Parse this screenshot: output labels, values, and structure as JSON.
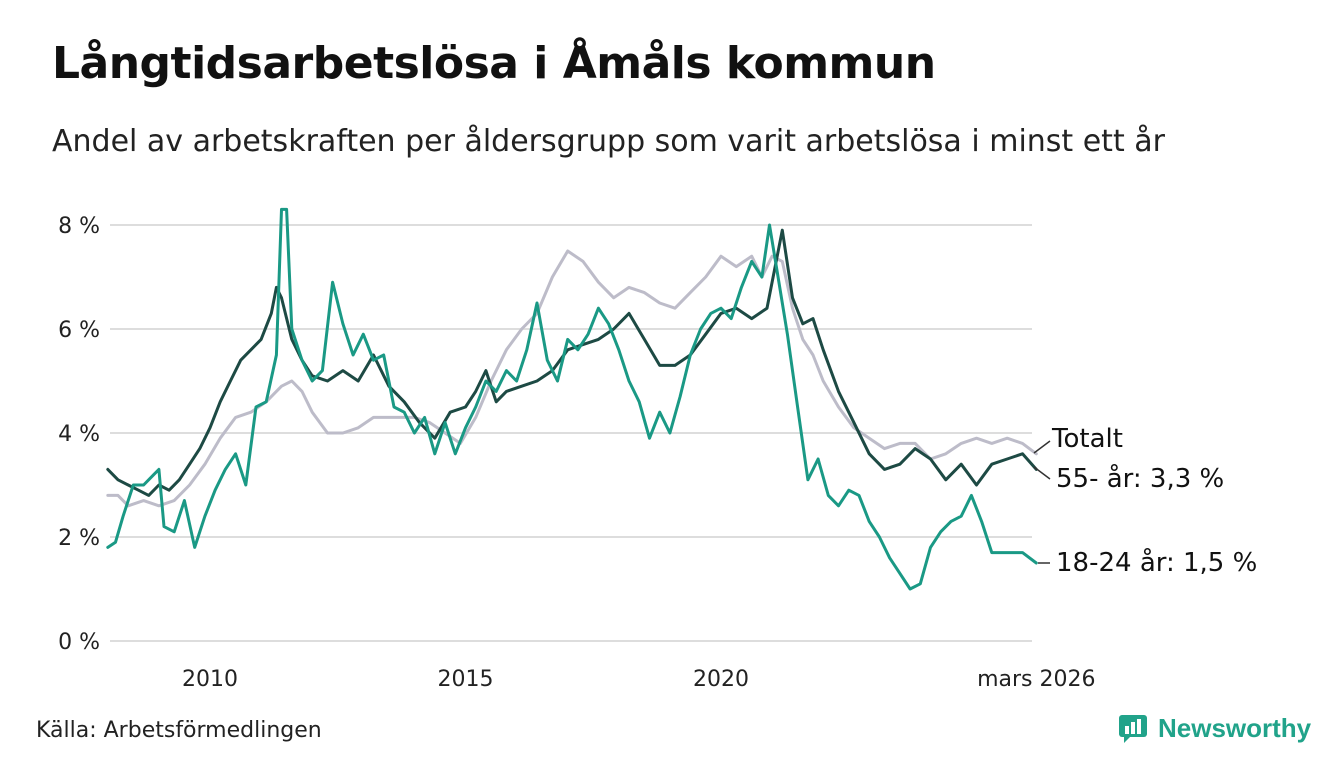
{
  "title": "Långtidsarbetslösa i Åmåls kommun",
  "subtitle": "Andel av arbetskraften per åldersgrupp som varit arbetslösa i minst ett år",
  "source": "Källa: Arbetsförmedlingen",
  "brand": {
    "name": "Newsworthy",
    "icon": "newsworthy-logo-icon"
  },
  "colors": {
    "total": "#bdbcc9",
    "age55": "#1d4a44",
    "age18_24": "#1a9985",
    "grid": "#dddddd",
    "brand": "#21a38a"
  },
  "chart_data": {
    "type": "line",
    "title": "Långtidsarbetslösa i Åmåls kommun",
    "xlabel": "",
    "ylabel": "",
    "ylim": [
      0,
      8.5
    ],
    "xlim": [
      2008.0,
      2026.2
    ],
    "yticks": [
      {
        "value": 0,
        "label": "0 %"
      },
      {
        "value": 2,
        "label": "2 %"
      },
      {
        "value": 4,
        "label": "4 %"
      },
      {
        "value": 6,
        "label": "6 %"
      },
      {
        "value": 8,
        "label": "8 %"
      }
    ],
    "xticks": [
      {
        "value": 2010,
        "label": "2010"
      },
      {
        "value": 2015,
        "label": "2015"
      },
      {
        "value": 2020,
        "label": "2020"
      },
      {
        "value": 2026.17,
        "label": "mars 2026"
      }
    ],
    "series": [
      {
        "key": "total",
        "name": "Totalt",
        "label": "Totalt",
        "points": [
          [
            2008.0,
            2.8
          ],
          [
            2008.2,
            2.8
          ],
          [
            2008.4,
            2.6
          ],
          [
            2008.7,
            2.7
          ],
          [
            2009.0,
            2.6
          ],
          [
            2009.3,
            2.7
          ],
          [
            2009.6,
            3.0
          ],
          [
            2009.9,
            3.4
          ],
          [
            2010.2,
            3.9
          ],
          [
            2010.5,
            4.3
          ],
          [
            2010.8,
            4.4
          ],
          [
            2011.1,
            4.6
          ],
          [
            2011.4,
            4.9
          ],
          [
            2011.6,
            5.0
          ],
          [
            2011.8,
            4.8
          ],
          [
            2012.0,
            4.4
          ],
          [
            2012.3,
            4.0
          ],
          [
            2012.6,
            4.0
          ],
          [
            2012.9,
            4.1
          ],
          [
            2013.2,
            4.3
          ],
          [
            2013.6,
            4.3
          ],
          [
            2014.0,
            4.3
          ],
          [
            2014.3,
            4.2
          ],
          [
            2014.6,
            4.0
          ],
          [
            2014.9,
            3.8
          ],
          [
            2015.2,
            4.3
          ],
          [
            2015.5,
            5.0
          ],
          [
            2015.8,
            5.6
          ],
          [
            2016.1,
            6.0
          ],
          [
            2016.4,
            6.3
          ],
          [
            2016.7,
            7.0
          ],
          [
            2017.0,
            7.5
          ],
          [
            2017.3,
            7.3
          ],
          [
            2017.6,
            6.9
          ],
          [
            2017.9,
            6.6
          ],
          [
            2018.2,
            6.8
          ],
          [
            2018.5,
            6.7
          ],
          [
            2018.8,
            6.5
          ],
          [
            2019.1,
            6.4
          ],
          [
            2019.4,
            6.7
          ],
          [
            2019.7,
            7.0
          ],
          [
            2020.0,
            7.4
          ],
          [
            2020.3,
            7.2
          ],
          [
            2020.6,
            7.4
          ],
          [
            2020.8,
            7.0
          ],
          [
            2021.0,
            7.4
          ],
          [
            2021.2,
            7.3
          ],
          [
            2021.4,
            6.4
          ],
          [
            2021.6,
            5.8
          ],
          [
            2021.8,
            5.5
          ],
          [
            2022.0,
            5.0
          ],
          [
            2022.3,
            4.5
          ],
          [
            2022.6,
            4.1
          ],
          [
            2022.9,
            3.9
          ],
          [
            2023.2,
            3.7
          ],
          [
            2023.5,
            3.8
          ],
          [
            2023.8,
            3.8
          ],
          [
            2024.1,
            3.5
          ],
          [
            2024.4,
            3.6
          ],
          [
            2024.7,
            3.8
          ],
          [
            2025.0,
            3.9
          ],
          [
            2025.3,
            3.8
          ],
          [
            2025.6,
            3.9
          ],
          [
            2025.9,
            3.8
          ],
          [
            2026.17,
            3.6
          ]
        ]
      },
      {
        "key": "age55",
        "name": "55- år",
        "label": "55- år: 3,3 %",
        "points": [
          [
            2008.0,
            3.3
          ],
          [
            2008.2,
            3.1
          ],
          [
            2008.4,
            3.0
          ],
          [
            2008.6,
            2.9
          ],
          [
            2008.8,
            2.8
          ],
          [
            2009.0,
            3.0
          ],
          [
            2009.2,
            2.9
          ],
          [
            2009.4,
            3.1
          ],
          [
            2009.6,
            3.4
          ],
          [
            2009.8,
            3.7
          ],
          [
            2010.0,
            4.1
          ],
          [
            2010.2,
            4.6
          ],
          [
            2010.4,
            5.0
          ],
          [
            2010.6,
            5.4
          ],
          [
            2010.8,
            5.6
          ],
          [
            2011.0,
            5.8
          ],
          [
            2011.2,
            6.3
          ],
          [
            2011.3,
            6.8
          ],
          [
            2011.4,
            6.6
          ],
          [
            2011.6,
            5.8
          ],
          [
            2011.8,
            5.4
          ],
          [
            2012.0,
            5.1
          ],
          [
            2012.3,
            5.0
          ],
          [
            2012.6,
            5.2
          ],
          [
            2012.9,
            5.0
          ],
          [
            2013.2,
            5.5
          ],
          [
            2013.5,
            4.9
          ],
          [
            2013.8,
            4.6
          ],
          [
            2014.1,
            4.2
          ],
          [
            2014.4,
            3.9
          ],
          [
            2014.7,
            4.4
          ],
          [
            2015.0,
            4.5
          ],
          [
            2015.2,
            4.8
          ],
          [
            2015.4,
            5.2
          ],
          [
            2015.6,
            4.6
          ],
          [
            2015.8,
            4.8
          ],
          [
            2016.1,
            4.9
          ],
          [
            2016.4,
            5.0
          ],
          [
            2016.7,
            5.2
          ],
          [
            2017.0,
            5.6
          ],
          [
            2017.3,
            5.7
          ],
          [
            2017.6,
            5.8
          ],
          [
            2017.9,
            6.0
          ],
          [
            2018.2,
            6.3
          ],
          [
            2018.5,
            5.8
          ],
          [
            2018.8,
            5.3
          ],
          [
            2019.1,
            5.3
          ],
          [
            2019.4,
            5.5
          ],
          [
            2019.7,
            5.9
          ],
          [
            2020.0,
            6.3
          ],
          [
            2020.3,
            6.4
          ],
          [
            2020.6,
            6.2
          ],
          [
            2020.9,
            6.4
          ],
          [
            2021.1,
            7.4
          ],
          [
            2021.2,
            7.9
          ],
          [
            2021.4,
            6.6
          ],
          [
            2021.6,
            6.1
          ],
          [
            2021.8,
            6.2
          ],
          [
            2022.0,
            5.6
          ],
          [
            2022.3,
            4.8
          ],
          [
            2022.6,
            4.2
          ],
          [
            2022.9,
            3.6
          ],
          [
            2023.2,
            3.3
          ],
          [
            2023.5,
            3.4
          ],
          [
            2023.8,
            3.7
          ],
          [
            2024.1,
            3.5
          ],
          [
            2024.4,
            3.1
          ],
          [
            2024.7,
            3.4
          ],
          [
            2025.0,
            3.0
          ],
          [
            2025.3,
            3.4
          ],
          [
            2025.6,
            3.5
          ],
          [
            2025.9,
            3.6
          ],
          [
            2026.17,
            3.3
          ]
        ]
      },
      {
        "key": "age18_24",
        "name": "18-24 år",
        "label": "18-24 år: 1,5 %",
        "points": [
          [
            2008.0,
            1.8
          ],
          [
            2008.15,
            1.9
          ],
          [
            2008.3,
            2.4
          ],
          [
            2008.5,
            3.0
          ],
          [
            2008.7,
            3.0
          ],
          [
            2008.9,
            3.2
          ],
          [
            2009.0,
            3.3
          ],
          [
            2009.1,
            2.2
          ],
          [
            2009.3,
            2.1
          ],
          [
            2009.5,
            2.7
          ],
          [
            2009.7,
            1.8
          ],
          [
            2009.9,
            2.4
          ],
          [
            2010.1,
            2.9
          ],
          [
            2010.3,
            3.3
          ],
          [
            2010.5,
            3.6
          ],
          [
            2010.7,
            3.0
          ],
          [
            2010.9,
            4.5
          ],
          [
            2011.1,
            4.6
          ],
          [
            2011.3,
            5.5
          ],
          [
            2011.4,
            8.3
          ],
          [
            2011.5,
            8.3
          ],
          [
            2011.6,
            6.0
          ],
          [
            2011.8,
            5.4
          ],
          [
            2012.0,
            5.0
          ],
          [
            2012.2,
            5.2
          ],
          [
            2012.4,
            6.9
          ],
          [
            2012.6,
            6.1
          ],
          [
            2012.8,
            5.5
          ],
          [
            2013.0,
            5.9
          ],
          [
            2013.2,
            5.4
          ],
          [
            2013.4,
            5.5
          ],
          [
            2013.6,
            4.5
          ],
          [
            2013.8,
            4.4
          ],
          [
            2014.0,
            4.0
          ],
          [
            2014.2,
            4.3
          ],
          [
            2014.4,
            3.6
          ],
          [
            2014.6,
            4.2
          ],
          [
            2014.8,
            3.6
          ],
          [
            2015.0,
            4.1
          ],
          [
            2015.2,
            4.5
          ],
          [
            2015.4,
            5.0
          ],
          [
            2015.6,
            4.8
          ],
          [
            2015.8,
            5.2
          ],
          [
            2016.0,
            5.0
          ],
          [
            2016.2,
            5.6
          ],
          [
            2016.4,
            6.5
          ],
          [
            2016.6,
            5.4
          ],
          [
            2016.8,
            5.0
          ],
          [
            2017.0,
            5.8
          ],
          [
            2017.2,
            5.6
          ],
          [
            2017.4,
            5.9
          ],
          [
            2017.6,
            6.4
          ],
          [
            2017.8,
            6.1
          ],
          [
            2018.0,
            5.6
          ],
          [
            2018.2,
            5.0
          ],
          [
            2018.4,
            4.6
          ],
          [
            2018.6,
            3.9
          ],
          [
            2018.8,
            4.4
          ],
          [
            2019.0,
            4.0
          ],
          [
            2019.2,
            4.7
          ],
          [
            2019.4,
            5.5
          ],
          [
            2019.6,
            6.0
          ],
          [
            2019.8,
            6.3
          ],
          [
            2020.0,
            6.4
          ],
          [
            2020.2,
            6.2
          ],
          [
            2020.4,
            6.8
          ],
          [
            2020.6,
            7.3
          ],
          [
            2020.8,
            7.0
          ],
          [
            2020.95,
            8.0
          ],
          [
            2021.1,
            7.1
          ],
          [
            2021.3,
            5.9
          ],
          [
            2021.5,
            4.5
          ],
          [
            2021.7,
            3.1
          ],
          [
            2021.9,
            3.5
          ],
          [
            2022.1,
            2.8
          ],
          [
            2022.3,
            2.6
          ],
          [
            2022.5,
            2.9
          ],
          [
            2022.7,
            2.8
          ],
          [
            2022.9,
            2.3
          ],
          [
            2023.1,
            2.0
          ],
          [
            2023.3,
            1.6
          ],
          [
            2023.5,
            1.3
          ],
          [
            2023.7,
            1.0
          ],
          [
            2023.9,
            1.1
          ],
          [
            2024.1,
            1.8
          ],
          [
            2024.3,
            2.1
          ],
          [
            2024.5,
            2.3
          ],
          [
            2024.7,
            2.4
          ],
          [
            2024.9,
            2.8
          ],
          [
            2025.1,
            2.3
          ],
          [
            2025.3,
            1.7
          ],
          [
            2025.5,
            1.7
          ],
          [
            2025.7,
            1.7
          ],
          [
            2025.9,
            1.7
          ],
          [
            2026.17,
            1.5
          ]
        ]
      }
    ],
    "grid": true,
    "legend": "direct labels at line ends"
  }
}
